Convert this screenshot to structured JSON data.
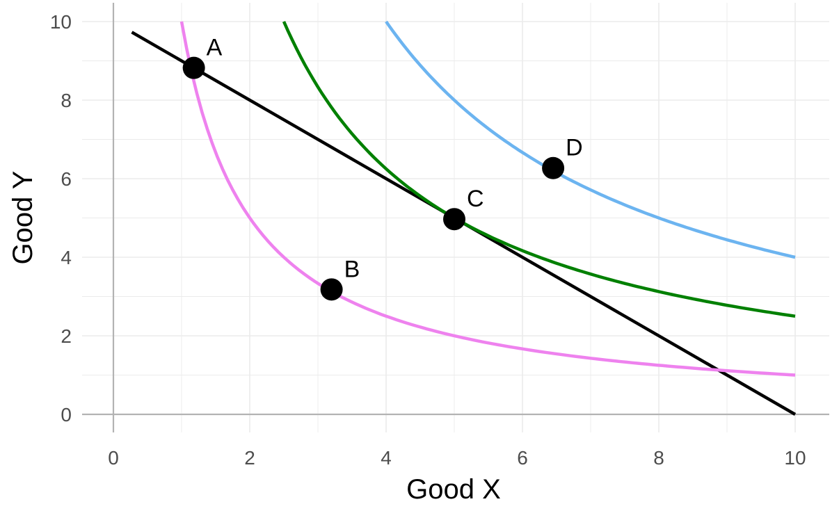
{
  "chart_data": {
    "type": "line",
    "xlabel": "Good X",
    "ylabel": "Good Y",
    "xlim": [
      0,
      10
    ],
    "ylim": [
      0,
      10
    ],
    "x_ticks": [
      "0",
      "2",
      "4",
      "6",
      "8",
      "10"
    ],
    "y_ticks": [
      "0",
      "2",
      "4",
      "6",
      "8",
      "10"
    ],
    "grid": true,
    "series": [
      {
        "kind": "budget-line",
        "color": "#000000",
        "points": [
          [
            0.27,
            9.73
          ],
          [
            10,
            0
          ]
        ]
      },
      {
        "kind": "indifference-curve",
        "color": "#ee82ee",
        "xy_product": 10,
        "x_range": [
          1,
          10
        ]
      },
      {
        "kind": "indifference-curve",
        "color": "#008000",
        "xy_product": 25,
        "x_range": [
          2.5,
          10
        ]
      },
      {
        "kind": "indifference-curve",
        "color": "#6cb4f0",
        "xy_product": 40,
        "x_range": [
          4,
          10
        ]
      }
    ],
    "points": [
      {
        "label": "A",
        "x": 1.18,
        "y": 8.82
      },
      {
        "label": "B",
        "x": 3.2,
        "y": 3.18
      },
      {
        "label": "C",
        "x": 5.0,
        "y": 4.97
      },
      {
        "label": "D",
        "x": 6.45,
        "y": 6.27
      }
    ]
  }
}
